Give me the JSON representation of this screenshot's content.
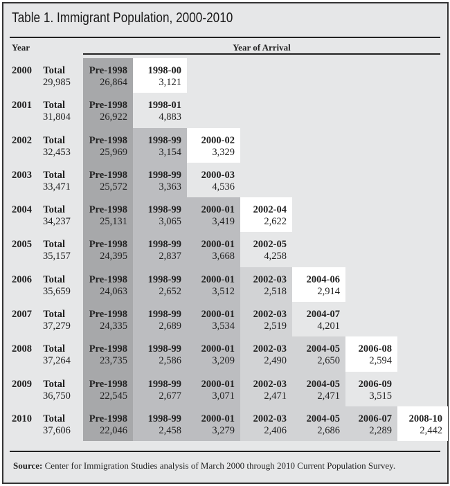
{
  "title": "Table 1. Immigrant Population, 2000-2010",
  "headers": {
    "year": "Year",
    "arrival": "Year of Arrival"
  },
  "total_label": "Total",
  "colors": {
    "background": "#e6e7e8",
    "pre1998_shade": "#a7a8aa",
    "mid_shade": "#bcbdc0",
    "light_shade": "#d2d3d5",
    "newest_cohort": "#ffffff"
  },
  "rows": [
    {
      "year": "2000",
      "total": "29,985",
      "cells": [
        {
          "label": "Pre-1998",
          "value": "26,864"
        },
        {
          "label": "1998-00",
          "value": "3,121"
        }
      ]
    },
    {
      "year": "2001",
      "total": "31,804",
      "cells": [
        {
          "label": "Pre-1998",
          "value": "26,922"
        },
        {
          "label": "1998-01",
          "value": "4,883"
        }
      ]
    },
    {
      "year": "2002",
      "total": "32,453",
      "cells": [
        {
          "label": "Pre-1998",
          "value": "25,969"
        },
        {
          "label": "1998-99",
          "value": "3,154"
        },
        {
          "label": "2000-02",
          "value": "3,329"
        }
      ]
    },
    {
      "year": "2003",
      "total": "33,471",
      "cells": [
        {
          "label": "Pre-1998",
          "value": "25,572"
        },
        {
          "label": "1998-99",
          "value": "3,363"
        },
        {
          "label": "2000-03",
          "value": "4,536"
        }
      ]
    },
    {
      "year": "2004",
      "total": "34,237",
      "cells": [
        {
          "label": "Pre-1998",
          "value": "25,131"
        },
        {
          "label": "1998-99",
          "value": "3,065"
        },
        {
          "label": "2000-01",
          "value": "3,419"
        },
        {
          "label": "2002-04",
          "value": "2,622"
        }
      ]
    },
    {
      "year": "2005",
      "total": "35,157",
      "cells": [
        {
          "label": "Pre-1998",
          "value": "24,395"
        },
        {
          "label": "1998-99",
          "value": "2,837"
        },
        {
          "label": "2000-01",
          "value": "3,668"
        },
        {
          "label": "2002-05",
          "value": "4,258"
        }
      ]
    },
    {
      "year": "2006",
      "total": "35,659",
      "cells": [
        {
          "label": "Pre-1998",
          "value": "24,063"
        },
        {
          "label": "1998-99",
          "value": "2,652"
        },
        {
          "label": "2000-01",
          "value": "3,512"
        },
        {
          "label": "2002-03",
          "value": "2,518"
        },
        {
          "label": "2004-06",
          "value": "2,914"
        }
      ]
    },
    {
      "year": "2007",
      "total": "37,279",
      "cells": [
        {
          "label": "Pre-1998",
          "value": "24,335"
        },
        {
          "label": "1998-99",
          "value": "2,689"
        },
        {
          "label": "2000-01",
          "value": "3,534"
        },
        {
          "label": "2002-03",
          "value": "2,519"
        },
        {
          "label": "2004-07",
          "value": "4,201"
        }
      ]
    },
    {
      "year": "2008",
      "total": "37,264",
      "cells": [
        {
          "label": "Pre-1998",
          "value": "23,735"
        },
        {
          "label": "1998-99",
          "value": "2,586"
        },
        {
          "label": "2000-01",
          "value": "3,209"
        },
        {
          "label": "2002-03",
          "value": "2,490"
        },
        {
          "label": "2004-05",
          "value": "2,650"
        },
        {
          "label": "2006-08",
          "value": "2,594"
        }
      ]
    },
    {
      "year": "2009",
      "total": "36,750",
      "cells": [
        {
          "label": "Pre-1998",
          "value": "22,545"
        },
        {
          "label": "1998-99",
          "value": "2,677"
        },
        {
          "label": "2000-01",
          "value": "3,071"
        },
        {
          "label": "2002-03",
          "value": "2,471"
        },
        {
          "label": "2004-05",
          "value": "2,471"
        },
        {
          "label": "2006-09",
          "value": "3,515"
        }
      ]
    },
    {
      "year": "2010",
      "total": "37,606",
      "cells": [
        {
          "label": "Pre-1998",
          "value": "22,046"
        },
        {
          "label": "1998-99",
          "value": "2,458"
        },
        {
          "label": "2000-01",
          "value": "3,279"
        },
        {
          "label": "2002-03",
          "value": "2,406"
        },
        {
          "label": "2004-05",
          "value": "2,686"
        },
        {
          "label": "2006-07",
          "value": "2,289"
        },
        {
          "label": "2008-10",
          "value": "2,442"
        }
      ]
    }
  ],
  "source": {
    "label": "Source:",
    "text": " Center for Immigration Studies analysis of March 2000 through 2010 Current Population Survey."
  }
}
